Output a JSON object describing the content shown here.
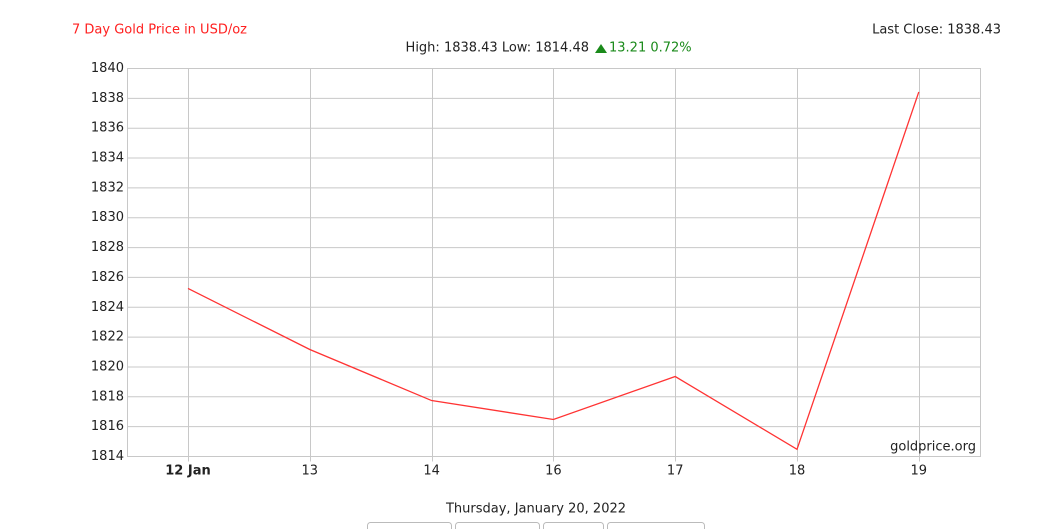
{
  "chart_data": {
    "type": "line",
    "title": "7 Day Gold Price in USD/oz",
    "last_close": "Last Close: 1838.43",
    "subtitle": "High: 1838.43 Low: 1814.48",
    "change": "13.21 0.72%",
    "date": "Thursday, January 20, 2022",
    "watermark": "goldprice.org",
    "categories": [
      "12 Jan",
      "13",
      "14",
      "16",
      "17",
      "18",
      "19"
    ],
    "values": [
      1825.26,
      1821.17,
      1817.75,
      1816.48,
      1819.36,
      1814.48,
      1838.43
    ],
    "color": "#ff3333",
    "ylim": [
      1814,
      1840
    ],
    "yticks": [
      1814,
      1816,
      1818,
      1820,
      1822,
      1824,
      1826,
      1828,
      1830,
      1832,
      1834,
      1836,
      1838,
      1840
    ],
    "grid": true
  }
}
